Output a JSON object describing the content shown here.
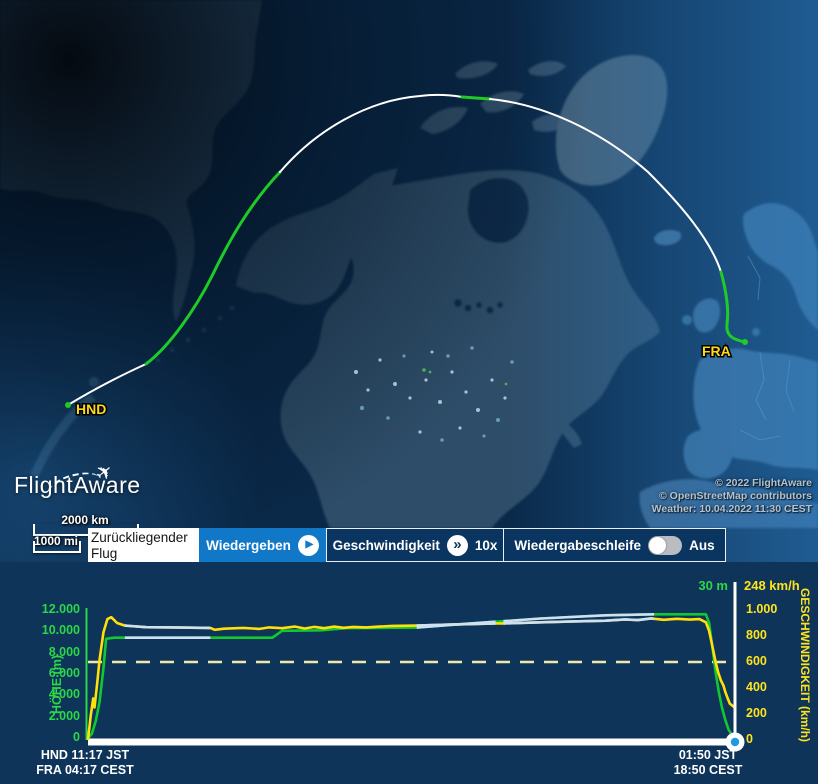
{
  "map": {
    "origin_label": "HND",
    "destination_label": "FRA",
    "logo_text": "FlightAware",
    "attribution": [
      "© 2022 FlightAware",
      "© OpenStreetMap contributors",
      "Weather: 10.04.2022 11:30 CEST"
    ],
    "scale_km": "2000 km",
    "scale_mi": "1000 mi"
  },
  "controls": {
    "mode_label": "Zurückliegender Flug",
    "play_label": "Wiedergeben",
    "speed_label": "Geschwindigkeit",
    "speed_value": "10x",
    "loop_label": "Wiedergabeschleife",
    "loop_state": "Aus"
  },
  "icons": {
    "play_glyph": "▶",
    "fast_forward_glyph": "»"
  },
  "chart": {
    "left_axis_label": "HÖHE (m)",
    "right_axis_label": "GESCHWINDIGKEIT (km/h)",
    "left_ticks": [
      "12.000",
      "10.000",
      "8.000",
      "6.000",
      "4.000",
      "2.000",
      "0"
    ],
    "right_ticks": [
      "1.000",
      "800",
      "600",
      "400",
      "200",
      "0"
    ],
    "current_altitude": "30 m",
    "current_speed": "248 km/h",
    "start_times": [
      "HND 11:17 JST",
      "FRA 04:17 CEST"
    ],
    "end_times": [
      "01:50 JST",
      "18:50 CEST"
    ]
  },
  "chart_data": {
    "type": "line",
    "xlabel": "",
    "x_is_fraction_of_flight": true,
    "left_axis": {
      "label": "HÖHE (m)",
      "min": 0,
      "max": 12000
    },
    "right_axis": {
      "label": "GESCHWINDIGKEIT (km/h)",
      "min": 0,
      "max": 1000
    },
    "alt_max": 12000,
    "speed_max": 1000,
    "reference_speed_kmh": 600,
    "grid": false,
    "legend_position": "none",
    "series": [
      {
        "name": "HÖHE (m)",
        "axis": "left",
        "color": "#12c832",
        "points": [
          [
            0,
            0
          ],
          [
            0.006,
            400
          ],
          [
            0.012,
            1600
          ],
          [
            0.018,
            3400
          ],
          [
            0.024,
            6600
          ],
          [
            0.028,
            9300
          ],
          [
            0.04,
            9400
          ],
          [
            0.12,
            9400
          ],
          [
            0.2,
            9400
          ],
          [
            0.285,
            9400
          ],
          [
            0.3,
            10050
          ],
          [
            0.36,
            10100
          ],
          [
            0.4,
            10300
          ],
          [
            0.45,
            10320
          ],
          [
            0.508,
            10350
          ],
          [
            0.56,
            10600
          ],
          [
            0.63,
            10900
          ],
          [
            0.642,
            10950
          ],
          [
            0.7,
            11200
          ],
          [
            0.8,
            11500
          ],
          [
            0.875,
            11600
          ],
          [
            0.955,
            11600
          ],
          [
            0.96,
            10800
          ],
          [
            0.965,
            8500
          ],
          [
            0.97,
            6200
          ],
          [
            0.975,
            4300
          ],
          [
            0.98,
            2800
          ],
          [
            0.985,
            1700
          ],
          [
            0.99,
            800
          ],
          [
            0.995,
            300
          ],
          [
            1,
            30
          ]
        ]
      },
      {
        "name": "GESCHWINDIGKEIT (km/h)",
        "axis": "right",
        "color": "#ffe008",
        "points": [
          [
            0,
            0
          ],
          [
            0.004,
            180
          ],
          [
            0.008,
            320
          ],
          [
            0.01,
            250
          ],
          [
            0.014,
            430
          ],
          [
            0.018,
            620
          ],
          [
            0.024,
            830
          ],
          [
            0.03,
            930
          ],
          [
            0.036,
            945
          ],
          [
            0.045,
            900
          ],
          [
            0.057,
            880
          ],
          [
            0.09,
            868
          ],
          [
            0.13,
            866
          ],
          [
            0.189,
            862
          ],
          [
            0.196,
            848
          ],
          [
            0.21,
            856
          ],
          [
            0.24,
            862
          ],
          [
            0.265,
            855
          ],
          [
            0.28,
            866
          ],
          [
            0.3,
            860
          ],
          [
            0.32,
            872
          ],
          [
            0.335,
            858
          ],
          [
            0.35,
            870
          ],
          [
            0.365,
            860
          ],
          [
            0.38,
            872
          ],
          [
            0.395,
            863
          ],
          [
            0.41,
            870
          ],
          [
            0.43,
            866
          ],
          [
            0.45,
            872
          ],
          [
            0.47,
            878
          ],
          [
            0.508,
            880
          ],
          [
            0.56,
            888
          ],
          [
            0.6,
            893
          ],
          [
            0.63,
            896
          ],
          [
            0.642,
            897
          ],
          [
            0.7,
            905
          ],
          [
            0.75,
            912
          ],
          [
            0.8,
            918
          ],
          [
            0.83,
            928
          ],
          [
            0.85,
            922
          ],
          [
            0.87,
            935
          ],
          [
            0.89,
            925
          ],
          [
            0.91,
            932
          ],
          [
            0.93,
            926
          ],
          [
            0.945,
            930
          ],
          [
            0.955,
            905
          ],
          [
            0.96,
            840
          ],
          [
            0.965,
            720
          ],
          [
            0.97,
            600
          ],
          [
            0.974,
            520
          ],
          [
            0.978,
            460
          ],
          [
            0.982,
            420
          ],
          [
            0.985,
            370
          ],
          [
            0.988,
            330
          ],
          [
            0.992,
            280
          ],
          [
            1,
            248
          ]
        ]
      }
    ],
    "estimated_segments": [
      [
        0.057,
        0.189
      ],
      [
        0.508,
        0.63
      ],
      [
        0.642,
        0.875
      ]
    ],
    "estimated_color": "#cfe0f2"
  },
  "colors": {
    "accent_blue": "#1178c8",
    "altitude_green": "#12c832",
    "speed_yellow": "#ffe008",
    "route_green": "#1ecb27",
    "label_yellow": "#ffd91e",
    "chart_bg": "#0e3459"
  }
}
